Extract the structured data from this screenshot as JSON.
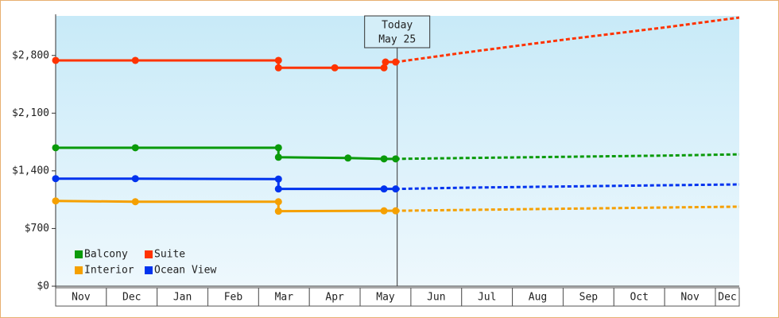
{
  "chart_data": {
    "type": "line",
    "annotation": [
      "Today",
      "May 25"
    ],
    "today_x": 6.73,
    "categories": [
      "Nov",
      "Dec",
      "Jan",
      "Feb",
      "Mar",
      "Apr",
      "May",
      "Jun",
      "Jul",
      "Aug",
      "Sep",
      "Oct",
      "Nov",
      "Dec"
    ],
    "xlim": [
      0,
      13.47
    ],
    "ylim": [
      0,
      3280
    ],
    "yticks": [
      {
        "value": 0,
        "label": "$0"
      },
      {
        "value": 700,
        "label": "$700"
      },
      {
        "value": 1400,
        "label": "$1,400"
      },
      {
        "value": 2100,
        "label": "$2,100"
      },
      {
        "value": 2800,
        "label": "$2,800"
      }
    ],
    "series": [
      {
        "name": "Balcony",
        "color": "#0a9a0a",
        "x": [
          0,
          1.57,
          4.39,
          4.39,
          5.76,
          6.47,
          6.7
        ],
        "values": [
          1680,
          1680,
          1680,
          1565,
          1555,
          1545,
          1545
        ],
        "forecast": {
          "x": [
            6.7,
            8,
            10,
            12,
            13.47
          ],
          "values": [
            1545,
            1555,
            1570,
            1585,
            1600
          ]
        }
      },
      {
        "name": "Suite",
        "color": "#ff3300",
        "x": [
          0,
          1.57,
          4.39,
          4.39,
          5.5,
          6.47,
          6.5,
          6.7
        ],
        "values": [
          2740,
          2740,
          2740,
          2650,
          2650,
          2650,
          2720,
          2720
        ],
        "forecast": {
          "x": [
            6.7,
            8,
            10,
            12,
            13.47
          ],
          "values": [
            2720,
            2830,
            2990,
            3140,
            3260
          ]
        }
      },
      {
        "name": "Interior",
        "color": "#f5a000",
        "x": [
          0,
          1.57,
          4.39,
          4.39,
          6.47,
          6.7
        ],
        "values": [
          1035,
          1025,
          1025,
          910,
          915,
          915
        ],
        "forecast": {
          "x": [
            6.7,
            8,
            10,
            12,
            13.47
          ],
          "values": [
            915,
            925,
            940,
            955,
            965
          ]
        }
      },
      {
        "name": "Ocean View",
        "color": "#0033ee",
        "x": [
          0,
          1.57,
          4.39,
          4.39,
          6.47,
          6.7
        ],
        "values": [
          1305,
          1305,
          1300,
          1180,
          1180,
          1180
        ],
        "forecast": {
          "x": [
            6.7,
            8,
            10,
            12,
            13.47
          ],
          "values": [
            1180,
            1195,
            1210,
            1225,
            1235
          ]
        }
      }
    ]
  }
}
